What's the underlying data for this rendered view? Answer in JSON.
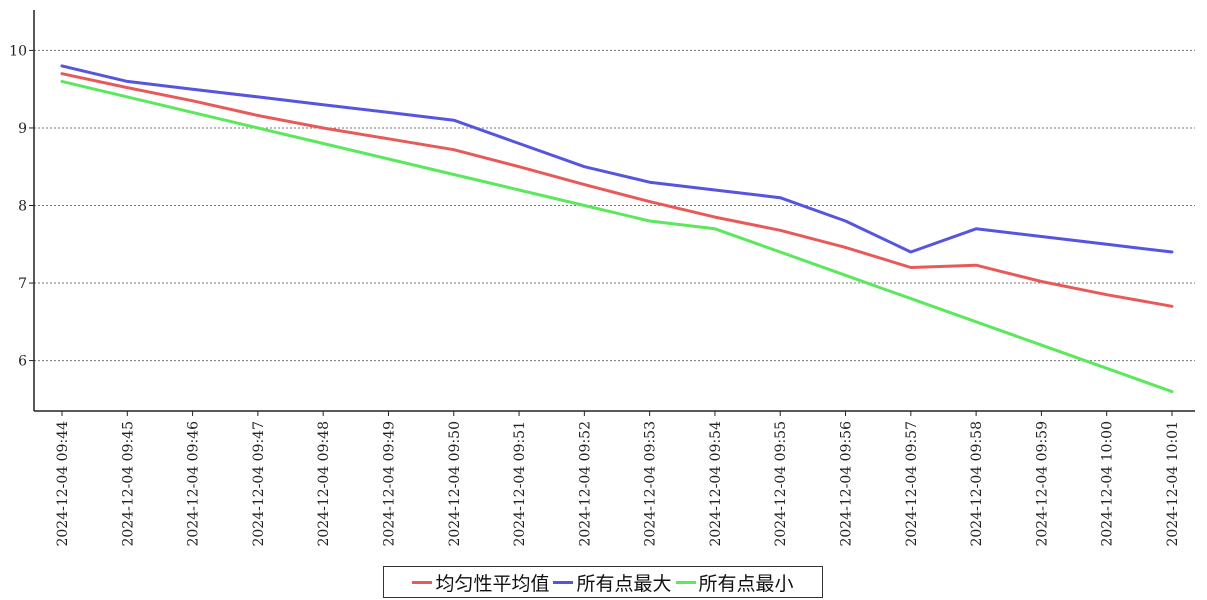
{
  "chart_data": {
    "type": "line",
    "title": "",
    "xlabel": "",
    "ylabel": "",
    "x": [
      "2024-12-04 09:44",
      "2024-12-04 09:45",
      "2024-12-04 09:46",
      "2024-12-04 09:47",
      "2024-12-04 09:48",
      "2024-12-04 09:49",
      "2024-12-04 09:50",
      "2024-12-04 09:51",
      "2024-12-04 09:52",
      "2024-12-04 09:53",
      "2024-12-04 09:54",
      "2024-12-04 09:55",
      "2024-12-04 09:56",
      "2024-12-04 09:57",
      "2024-12-04 09:58",
      "2024-12-04 09:59",
      "2024-12-04 10:00",
      "2024-12-04 10:01"
    ],
    "yticks": [
      6,
      7,
      8,
      9,
      10
    ],
    "ylim": [
      5.35,
      10.65
    ],
    "grid": "horizontal dotted",
    "legend_position": "bottom",
    "series": [
      {
        "name": "均匀性平均值",
        "color": "#e85a5a",
        "values": [
          9.7,
          9.52,
          9.35,
          9.16,
          9.0,
          8.86,
          8.72,
          8.5,
          8.27,
          8.05,
          7.85,
          7.68,
          7.46,
          7.2,
          7.23,
          7.02,
          6.85,
          6.7
        ]
      },
      {
        "name": "所有点最大",
        "color": "#5555e0",
        "values": [
          9.8,
          9.6,
          9.5,
          9.4,
          9.3,
          9.2,
          9.1,
          8.8,
          8.5,
          8.3,
          8.2,
          8.1,
          7.8,
          7.4,
          7.7,
          7.6,
          7.5,
          7.4
        ]
      },
      {
        "name": "所有点最小",
        "color": "#5ce85c",
        "values": [
          9.6,
          9.4,
          9.2,
          9.0,
          8.8,
          8.6,
          8.4,
          8.2,
          8.0,
          7.8,
          7.7,
          7.4,
          7.1,
          6.8,
          6.5,
          6.2,
          5.9,
          5.6
        ]
      }
    ]
  }
}
